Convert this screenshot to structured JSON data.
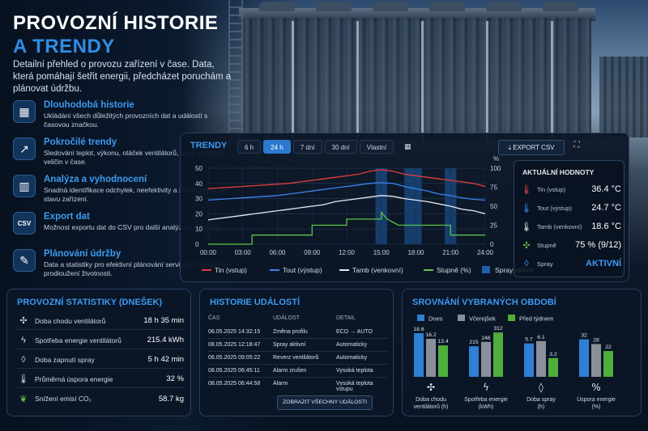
{
  "hero": {
    "title_line1": "PROVOZNÍ HISTORIE",
    "title_line2": "A TRENDY",
    "description": "Detailní přehled o provozu zařízení v čase. Data, která pomáhají šetřit energii, předcházet poruchám a plánovat údržbu."
  },
  "features": [
    {
      "icon": "calendar-icon",
      "glyph": "▦",
      "title": "Dlouhodobá historie",
      "desc": "Ukládání všech důležitých provozních dat a událostí s časovou značkou."
    },
    {
      "icon": "trend-up-icon",
      "glyph": "↗",
      "title": "Pokročilé trendy",
      "desc": "Sledování teplot, výkonu, otáček ventilátorů, tlaků a dalších veličin v čase."
    },
    {
      "icon": "analysis-icon",
      "glyph": "▥",
      "title": "Analýza a vyhodnocení",
      "desc": "Snadná identifikace odchylek, neefektivity a zhoršujícího se stavu zařízení."
    },
    {
      "icon": "csv-file-icon",
      "glyph": "CSV",
      "title": "Export dat",
      "desc": "Možnost exportu dat do CSV pro další analýzu a reporting."
    },
    {
      "icon": "wrench-icon",
      "glyph": "✎",
      "title": "Plánování údržby",
      "desc": "Data a statistiky pro efektivní plánování servisních zásahů a prodloužení životnosti."
    }
  ],
  "trend": {
    "title": "TRENDY",
    "ranges": [
      "6 h",
      "24 h",
      "7 dní",
      "30 dní",
      "Vlastní"
    ],
    "active_range": "24 h",
    "export_label": "EXPORT CSV",
    "current": {
      "title": "AKTUÁLNÍ HODNOTY",
      "rows": [
        {
          "icon": "thermometer-red-icon",
          "glyph": "🌡",
          "color": "#e24a4a",
          "label": "Tin (vstup)",
          "value": "36.4 °C"
        },
        {
          "icon": "thermometer-blue-icon",
          "glyph": "🌡",
          "color": "#3d8ef0",
          "label": "Tout (výstup)",
          "value": "24.7 °C"
        },
        {
          "icon": "thermometer-white-icon",
          "glyph": "🌡",
          "color": "#e8eef5",
          "label": "Tamb (venkovní)",
          "value": "18.6 °C"
        },
        {
          "icon": "fan-green-icon",
          "glyph": "✣",
          "color": "#5cc34a",
          "label": "Stupně",
          "value": "75 % (9/12)"
        },
        {
          "icon": "drop-icon",
          "glyph": "◊",
          "color": "#3d9af0",
          "label": "Spray",
          "value": "AKTIVNÍ"
        }
      ]
    }
  },
  "chart_data": {
    "type": "line",
    "x": [
      "00:00",
      "03:00",
      "06:00",
      "09:00",
      "12:00",
      "15:00",
      "18:00",
      "21:00",
      "24:00"
    ],
    "y_left_ticks": [
      0,
      10,
      20,
      30,
      40,
      50
    ],
    "y_right_ticks": [
      0,
      25,
      50,
      75,
      100
    ],
    "y_right_label": "%",
    "ylim": [
      0,
      50
    ],
    "y2lim": [
      0,
      100
    ],
    "series": [
      {
        "name": "Tin (vstup)",
        "color": "#e23d3d",
        "axis": "left",
        "x": [
          0,
          1,
          2,
          3,
          4,
          5,
          6,
          7,
          8,
          9,
          10,
          11,
          12,
          13,
          14,
          15,
          16,
          17,
          18,
          19,
          20,
          21,
          22,
          23,
          24
        ],
        "values": [
          36.5,
          37,
          37.5,
          38,
          38.5,
          39,
          39.5,
          40,
          41,
          42,
          43,
          44,
          45,
          46,
          48,
          49,
          48,
          46,
          45,
          44,
          43,
          42,
          41,
          40,
          38
        ]
      },
      {
        "name": "Tout (výstup)",
        "color": "#3a86ef",
        "axis": "left",
        "x": [
          0,
          1,
          2,
          3,
          4,
          5,
          6,
          7,
          8,
          9,
          10,
          11,
          12,
          13,
          14,
          15,
          16,
          17,
          18,
          19,
          20,
          21,
          22,
          23,
          24
        ],
        "values": [
          29,
          29.5,
          30,
          30.5,
          31,
          31.5,
          32,
          33,
          34,
          35,
          36,
          37,
          38,
          39,
          40,
          40.5,
          40,
          38,
          36.5,
          35,
          33,
          32,
          30.5,
          29.5,
          29
        ]
      },
      {
        "name": "Tamb (venkovní)",
        "color": "#e6ebf2",
        "axis": "left",
        "x": [
          0,
          1,
          2,
          3,
          4,
          5,
          6,
          7,
          8,
          9,
          10,
          11,
          12,
          13,
          14,
          15,
          16,
          17,
          18,
          19,
          20,
          21,
          22,
          23,
          24
        ],
        "values": [
          16,
          17,
          18,
          19,
          20,
          21,
          22,
          23,
          24,
          25,
          26,
          28,
          29,
          30,
          31,
          32,
          31.5,
          30,
          29,
          28,
          26.5,
          25,
          23,
          22,
          20
        ]
      },
      {
        "name": "Stupně (%)",
        "color": "#5cc34a",
        "axis": "right",
        "x": [
          0,
          3,
          3.8,
          3.8,
          9,
          9,
          12,
          12,
          15,
          15,
          15.5,
          16.5,
          18,
          18,
          21,
          21,
          24
        ],
        "values": [
          0,
          0,
          0,
          12,
          12,
          25,
          25,
          33,
          33,
          42,
          33,
          25,
          25,
          25,
          25,
          12,
          12
        ]
      }
    ],
    "spray_windows": [
      [
        14.5,
        15.5
      ],
      [
        17,
        18.5
      ],
      [
        20.5,
        21.5
      ]
    ],
    "legend": [
      "Tin (vstup)",
      "Tout (výstup)",
      "Tamb (venkovní)",
      "Stupně (%)",
      "Spray aktivní"
    ],
    "legend_position": "bottom",
    "grid": true
  },
  "stats": {
    "title": "PROVOZNÍ STATISTIKY (DNEŠEK)",
    "rows": [
      {
        "icon": "fan-icon",
        "glyph": "✣",
        "label": "Doba chodu ventilátorů",
        "value": "18 h 35 min"
      },
      {
        "icon": "bolt-icon",
        "glyph": "ϟ",
        "label": "Spotřeba energie ventilátorů",
        "value": "215.4 kWh"
      },
      {
        "icon": "drop-icon",
        "glyph": "◊",
        "label": "Doba zapnutí spray",
        "value": "5 h 42 min"
      },
      {
        "icon": "thermometer-icon",
        "glyph": "🌡",
        "label": "Průměrná úspora energie",
        "value": "32 %"
      },
      {
        "icon": "leaf-icon",
        "glyph": "❦",
        "label": "Snížení emisí CO₂",
        "value": "58.7 kg"
      }
    ]
  },
  "events": {
    "title": "HISTORIE UDÁLOSTÍ",
    "headers": [
      "ČAS",
      "UDÁLOST",
      "DETAIL"
    ],
    "rows": [
      [
        "08.05.2025 14:32:15",
        "Změna profilu",
        "ECO → AUTO"
      ],
      [
        "08.05.2025 12:18:47",
        "Spray aktivní",
        "Automaticky"
      ],
      [
        "08.05.2025 09:05:22",
        "Reverz ventilátorů",
        "Automaticky"
      ],
      [
        "08.05.2025 06:45:11",
        "Alarm zrušen",
        "Vysoká teplota"
      ],
      [
        "08.05.2025 06:44:58",
        "Alarm",
        "Vysoká teplota vstupu"
      ]
    ],
    "button_label": "ZOBRAZIT VŠECHNY UDÁLOSTI"
  },
  "compare": {
    "title": "SROVNÁNÍ VYBRANÝCH OBDOBÍ",
    "legend": [
      {
        "name": "Dnes",
        "color": "#2f7fd6"
      },
      {
        "name": "Včerejšek",
        "color": "#8a9099"
      },
      {
        "name": "Před týdnem",
        "color": "#4fae3c"
      }
    ],
    "groups": [
      {
        "icon": "fan-icon",
        "glyph": "✣",
        "label_line1": "Doba chodu",
        "label_line2": "ventilátorů (h)",
        "values": [
          18.6,
          16.2,
          13.4
        ],
        "labels": [
          "18.6",
          "16.2",
          "13.4"
        ],
        "max": 20
      },
      {
        "icon": "bolt-icon",
        "glyph": "ϟ",
        "label_line1": "Spotřeba energie",
        "label_line2": "(kWh)",
        "values": [
          215,
          246,
          312
        ],
        "labels": [
          "215",
          "246",
          "312"
        ],
        "max": 330
      },
      {
        "icon": "drop-icon",
        "glyph": "◊",
        "label_line1": "Doba spray",
        "label_line2": "(h)",
        "values": [
          5.7,
          6.1,
          3.2
        ],
        "labels": [
          "5.7",
          "6.1",
          "3.2"
        ],
        "max": 8
      },
      {
        "icon": "percent-icon",
        "glyph": "%",
        "label_line1": "Úspora energie",
        "label_line2": "(%)",
        "values": [
          32,
          28,
          22
        ],
        "labels": [
          "32",
          "28",
          "22"
        ],
        "max": 40
      }
    ]
  }
}
